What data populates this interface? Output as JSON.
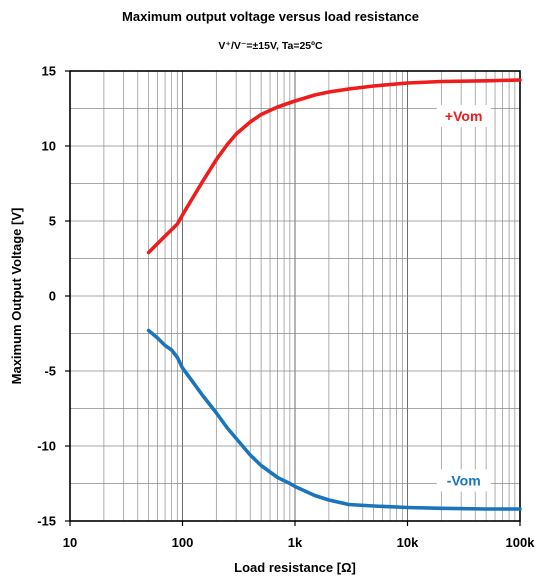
{
  "chart_data": {
    "type": "line",
    "title": "Maximum output voltage versus load resistance",
    "subtitle": "V⁺/V⁻=±15V, Ta=25ºC",
    "xlabel": "Load resistance [Ω]",
    "ylabel": "Maximum Output Voltage [V]",
    "x_scale": "log",
    "xlim": [
      10,
      100000
    ],
    "ylim": [
      -15,
      15
    ],
    "x_ticks": [
      10,
      100,
      1000,
      10000,
      100000
    ],
    "x_tick_labels": [
      "10",
      "100",
      "1k",
      "10k",
      "100k"
    ],
    "y_ticks": [
      15,
      10,
      5,
      0,
      -5,
      -10,
      -15
    ],
    "y_tick_labels": [
      "15",
      "10",
      "5",
      "0",
      "-5",
      "-10",
      "-15"
    ],
    "grid": true,
    "series": [
      {
        "name": "+Vom",
        "color": "#ee1c1c",
        "x": [
          50,
          70,
          90,
          100,
          120,
          150,
          200,
          250,
          300,
          400,
          500,
          700,
          1000,
          1500,
          2000,
          3000,
          5000,
          10000,
          20000,
          50000,
          100000
        ],
        "y": [
          2.9,
          4.0,
          4.8,
          5.4,
          6.4,
          7.6,
          9.1,
          10.1,
          10.8,
          11.6,
          12.1,
          12.6,
          13.0,
          13.4,
          13.6,
          13.8,
          14.0,
          14.2,
          14.3,
          14.35,
          14.4
        ]
      },
      {
        "name": "-Vom",
        "color": "#1a75bc",
        "x": [
          50,
          60,
          70,
          80,
          90,
          100,
          120,
          150,
          200,
          250,
          300,
          400,
          500,
          700,
          900,
          1000,
          1500,
          2000,
          3000,
          5000,
          10000,
          20000,
          50000,
          100000
        ],
        "y": [
          -2.3,
          -2.8,
          -3.3,
          -3.6,
          -4.1,
          -4.8,
          -5.6,
          -6.6,
          -7.8,
          -8.8,
          -9.5,
          -10.6,
          -11.3,
          -12.1,
          -12.5,
          -12.7,
          -13.3,
          -13.6,
          -13.9,
          -14.0,
          -14.1,
          -14.15,
          -14.2,
          -14.2
        ]
      }
    ]
  }
}
